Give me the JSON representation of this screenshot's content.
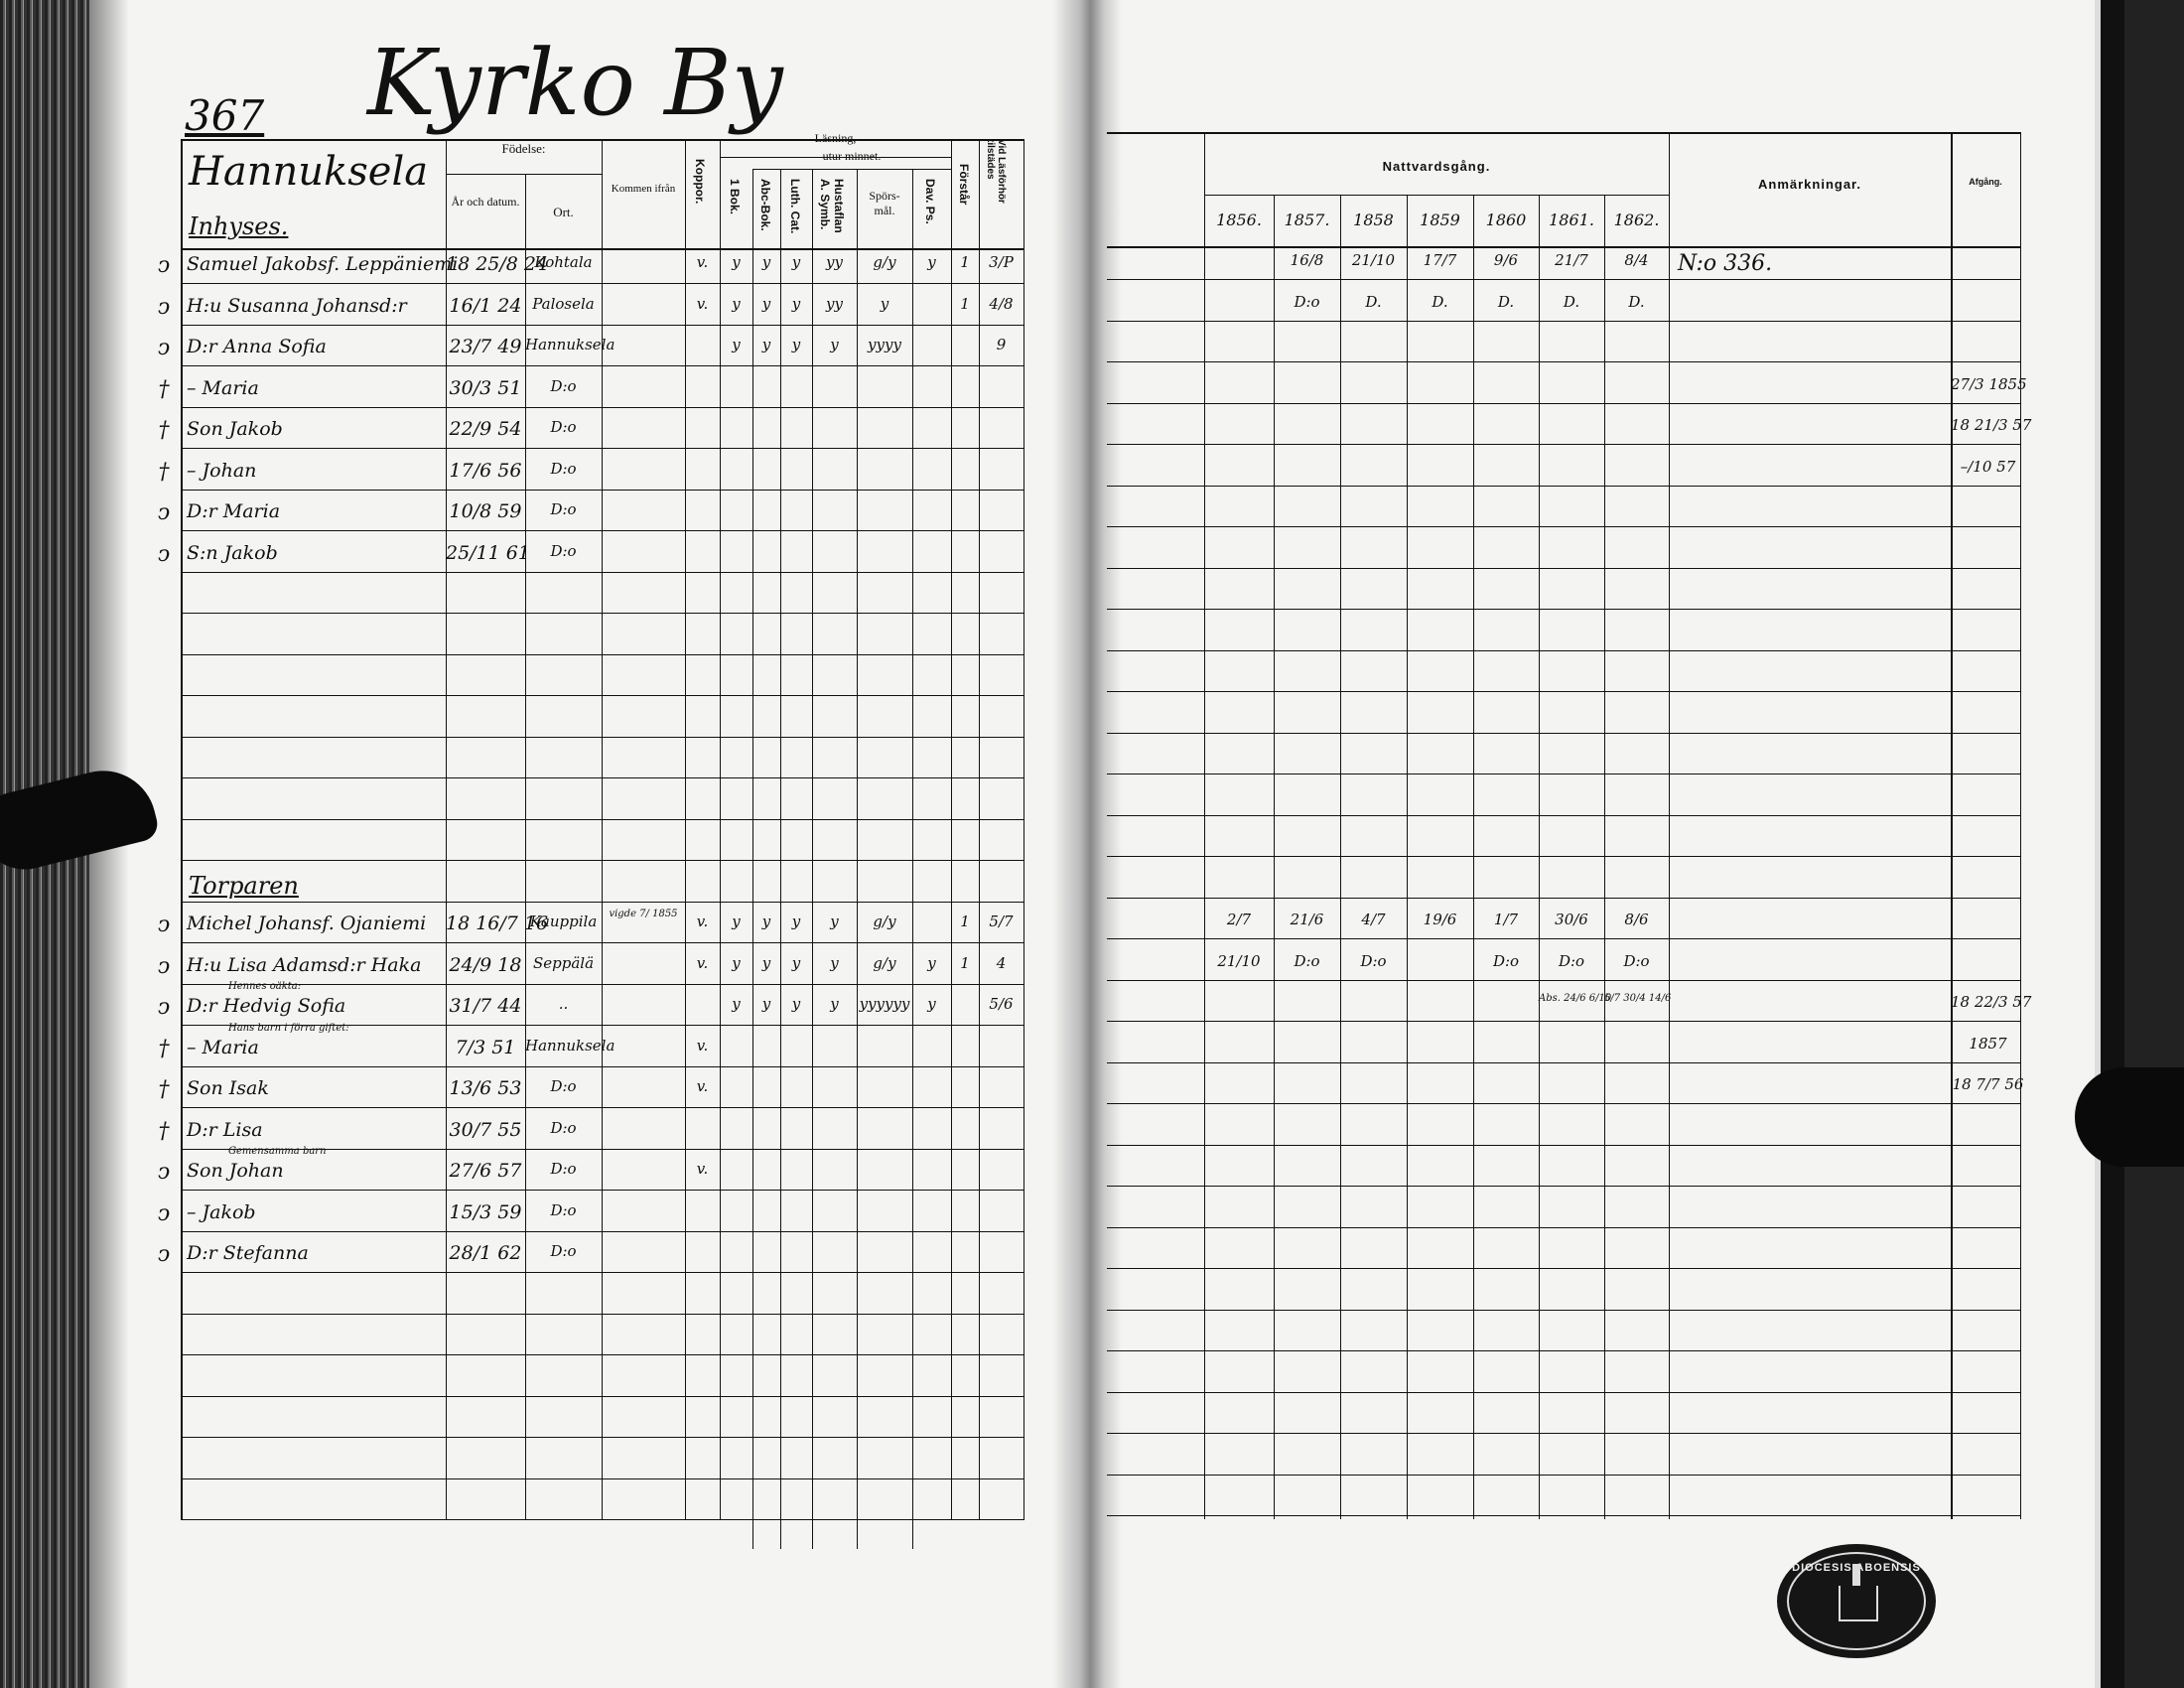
{
  "left_page": {
    "page_number": "367",
    "village_title": "Kyrko By",
    "farm_name": "Hannuksela",
    "headers": {
      "birth": "Födelse:",
      "year_date": "År och datum.",
      "place": "Ort.",
      "came_from": "Kommen ifrån",
      "smallpox": "Koppor.",
      "reading": "Läsning,",
      "by_heart": "utur minnet.",
      "first_book": "1 Bok.",
      "abc_book": "Abc-Bok.",
      "luther_cat": "Luth. Cat.",
      "house_table": "Hustaflan A. Symb.",
      "questions": "Spörs-mål.",
      "psalms": "Dav. Ps.",
      "understands": "Förstår",
      "present": "Vid Läsförhör tilstädes"
    },
    "rows": [
      {
        "row": -1,
        "section": "Inhyses."
      },
      {
        "row": 0,
        "mark": "ↄ",
        "name": "Samuel Jakobsf. Leppäniemi",
        "born": "18 25/8 24",
        "place": "Kohtala",
        "koppor": "v.",
        "bok": "y",
        "abc": "y",
        "luth": "y",
        "husf": "yy",
        "spors": "g/y",
        "dav": "y",
        "forst": "1",
        "vid": "3/P"
      },
      {
        "row": 1,
        "mark": "ↄ",
        "name": "H:u Susanna Johansd:r",
        "born": "16/1 24",
        "place": "Palosela",
        "koppor": "v.",
        "bok": "y",
        "abc": "y",
        "luth": "y",
        "husf": "yy",
        "spors": "y",
        "forst": "1",
        "vid": "4/8"
      },
      {
        "row": 2,
        "mark": "ↄ",
        "name": "D:r Anna Sofia",
        "born": "23/7 49",
        "place": "Hannuksela",
        "bok": "y",
        "abc": "y",
        "luth": "y",
        "husf": "y",
        "spors": "yyyy",
        "vid": "9"
      },
      {
        "row": 3,
        "mark": "†",
        "name": "– Maria",
        "born": "30/3 51",
        "place": "D:o"
      },
      {
        "row": 4,
        "mark": "†",
        "name": "Son Jakob",
        "born": "22/9 54",
        "place": "D:o"
      },
      {
        "row": 5,
        "mark": "†",
        "name": "– Johan",
        "born": "17/6 56",
        "place": "D:o"
      },
      {
        "row": 6,
        "mark": "ↄ",
        "name": "D:r Maria",
        "born": "10/8 59",
        "place": "D:o"
      },
      {
        "row": 7,
        "mark": "ↄ",
        "name": "S:n Jakob",
        "born": "25/11 61",
        "place": "D:o"
      },
      {
        "row": 15,
        "section": "Torparen"
      },
      {
        "row": 16,
        "mark": "ↄ",
        "name": "Michel Johansf. Ojaniemi",
        "born": "18 16/7 16",
        "place": "Kauppila",
        "from": "vigde 7/ 1855",
        "koppor": "v.",
        "bok": "y",
        "abc": "y",
        "luth": "y",
        "husf": "y",
        "spors": "g/y",
        "forst": "1",
        "vid": "5/7"
      },
      {
        "row": 17,
        "mark": "ↄ",
        "name": "H:u Lisa Adamsd:r Haka",
        "born": "24/9 18",
        "place": "Seppälä",
        "koppor": "v.",
        "bok": "y",
        "abc": "y",
        "luth": "y",
        "husf": "y",
        "spors": "g/y",
        "dav": "y",
        "forst": "1",
        "vid": "4"
      },
      {
        "row": 18,
        "mark": "ↄ",
        "note": "Hennes oäkta:",
        "name": "D:r Hedvig Sofia",
        "born": "31/7 44",
        "place": "..",
        "bok": "y",
        "abc": "y",
        "luth": "y",
        "husf": "y",
        "spors": "yyyyyy",
        "dav": "y",
        "vid": "5/6"
      },
      {
        "row": 19,
        "mark": "†",
        "note": "Hans barn i förra giftet:",
        "name": "– Maria",
        "born": "7/3 51",
        "place": "Hannuksela",
        "koppor": "v."
      },
      {
        "row": 20,
        "mark": "†",
        "name": "Son Isak",
        "born": "13/6 53",
        "place": "D:o",
        "koppor": "v."
      },
      {
        "row": 21,
        "mark": "†",
        "name": "D:r Lisa",
        "born": "30/7 55",
        "place": "D:o"
      },
      {
        "row": 22,
        "mark": "ↄ",
        "note": "Gemensamma barn",
        "name": "Son Johan",
        "born": "27/6 57",
        "place": "D:o",
        "koppor": "v."
      },
      {
        "row": 23,
        "mark": "ↄ",
        "name": "– Jakob",
        "born": "15/3 59",
        "place": "D:o"
      },
      {
        "row": 24,
        "mark": "ↄ",
        "name": "D:r Stefanna",
        "born": "28/1 62",
        "place": "D:o"
      }
    ]
  },
  "right_page": {
    "headers": {
      "communion": "Nattvardsgång.",
      "years": [
        "1856.",
        "1857.",
        "1858",
        "1859",
        "1860",
        "1861.",
        "1862."
      ],
      "remarks": "Anmärkningar.",
      "departure": "Afgång."
    },
    "rows": [
      {
        "row": 0,
        "c": [
          "",
          "16/8",
          "21/10",
          "17/7",
          "9/6",
          "21/7",
          "8/4"
        ],
        "remarks": "N:o 336."
      },
      {
        "row": 1,
        "c": [
          "",
          "D:o",
          "D.",
          "D.",
          "D.",
          "D.",
          "D."
        ]
      },
      {
        "row": 3,
        "departure": "27/3 1855"
      },
      {
        "row": 4,
        "departure": "18 21/3 57"
      },
      {
        "row": 5,
        "departure": "–/10 57"
      },
      {
        "row": 16,
        "c": [
          "2/7",
          "21/6",
          "4/7",
          "19/6",
          "1/7",
          "30/6",
          "8/6"
        ]
      },
      {
        "row": 17,
        "c": [
          "21/10",
          "D:o",
          "D:o",
          "",
          "D:o",
          "D:o",
          "D:o"
        ]
      },
      {
        "row": 18,
        "c": [
          "",
          "",
          "",
          "",
          "",
          "Abs. 24/6 6/10",
          "5/7 30/4 14/6"
        ],
        "departure": "18 22/3 57"
      },
      {
        "row": 19,
        "departure": "1857"
      },
      {
        "row": 20,
        "departure": "18 7/7 56"
      }
    ],
    "stamp_text": "DIOCESIS ABOENSIS"
  }
}
